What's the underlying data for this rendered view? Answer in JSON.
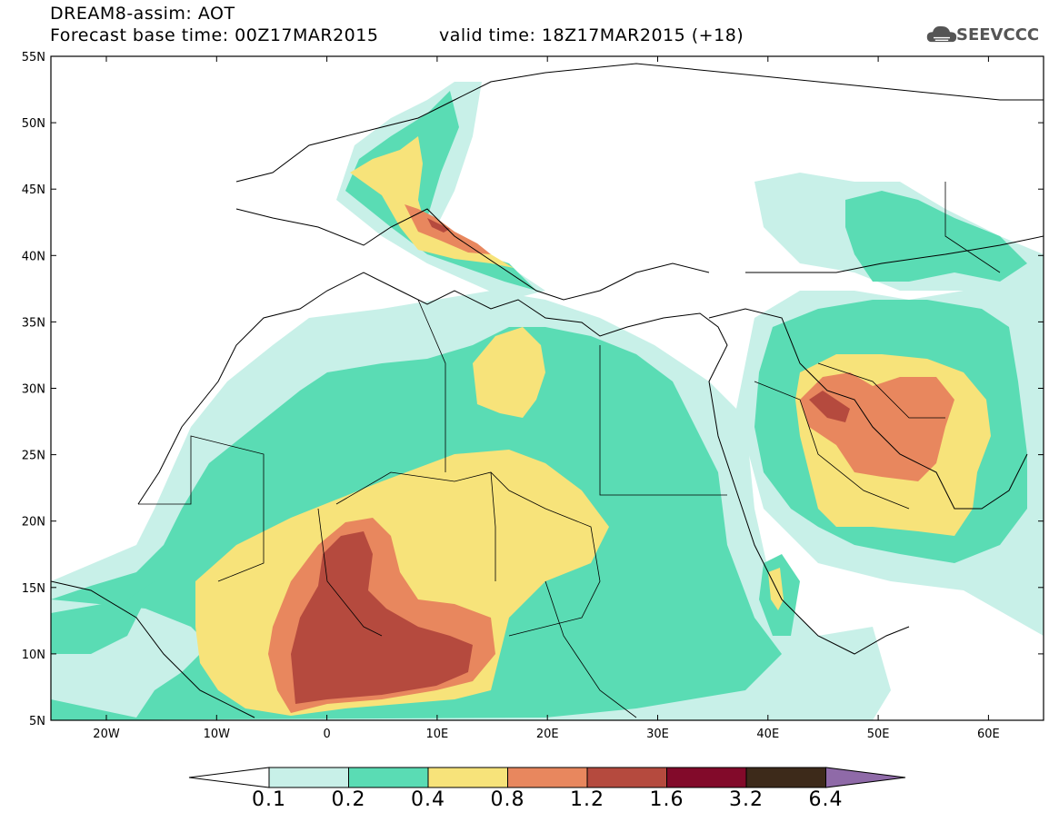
{
  "header": {
    "line1": "DREAM8-assim: AOT",
    "base_time": "Forecast base time: 00Z17MAR2015",
    "valid_time": "valid time: 18Z17MAR2015 (+18)",
    "logo_text": "SEEVCCC",
    "logo_icon": "cloud-icon"
  },
  "axes": {
    "lat_labels": [
      "55N",
      "50N",
      "45N",
      "40N",
      "35N",
      "30N",
      "25N",
      "20N",
      "15N",
      "10N",
      "5N"
    ],
    "lon_labels": [
      "20W",
      "10W",
      "0",
      "10E",
      "20E",
      "30E",
      "40E",
      "50E",
      "60E"
    ]
  },
  "colorbar": {
    "labels": [
      "0.1",
      "0.2",
      "0.4",
      "0.8",
      "1.2",
      "1.6",
      "3.2",
      "6.4"
    ],
    "colors": [
      "#c8f0e8",
      "#5adcb4",
      "#f7e37a",
      "#e8875e",
      "#b54a3e",
      "#820a2a",
      "#3d2a1a",
      "#8f6aa8"
    ]
  }
}
